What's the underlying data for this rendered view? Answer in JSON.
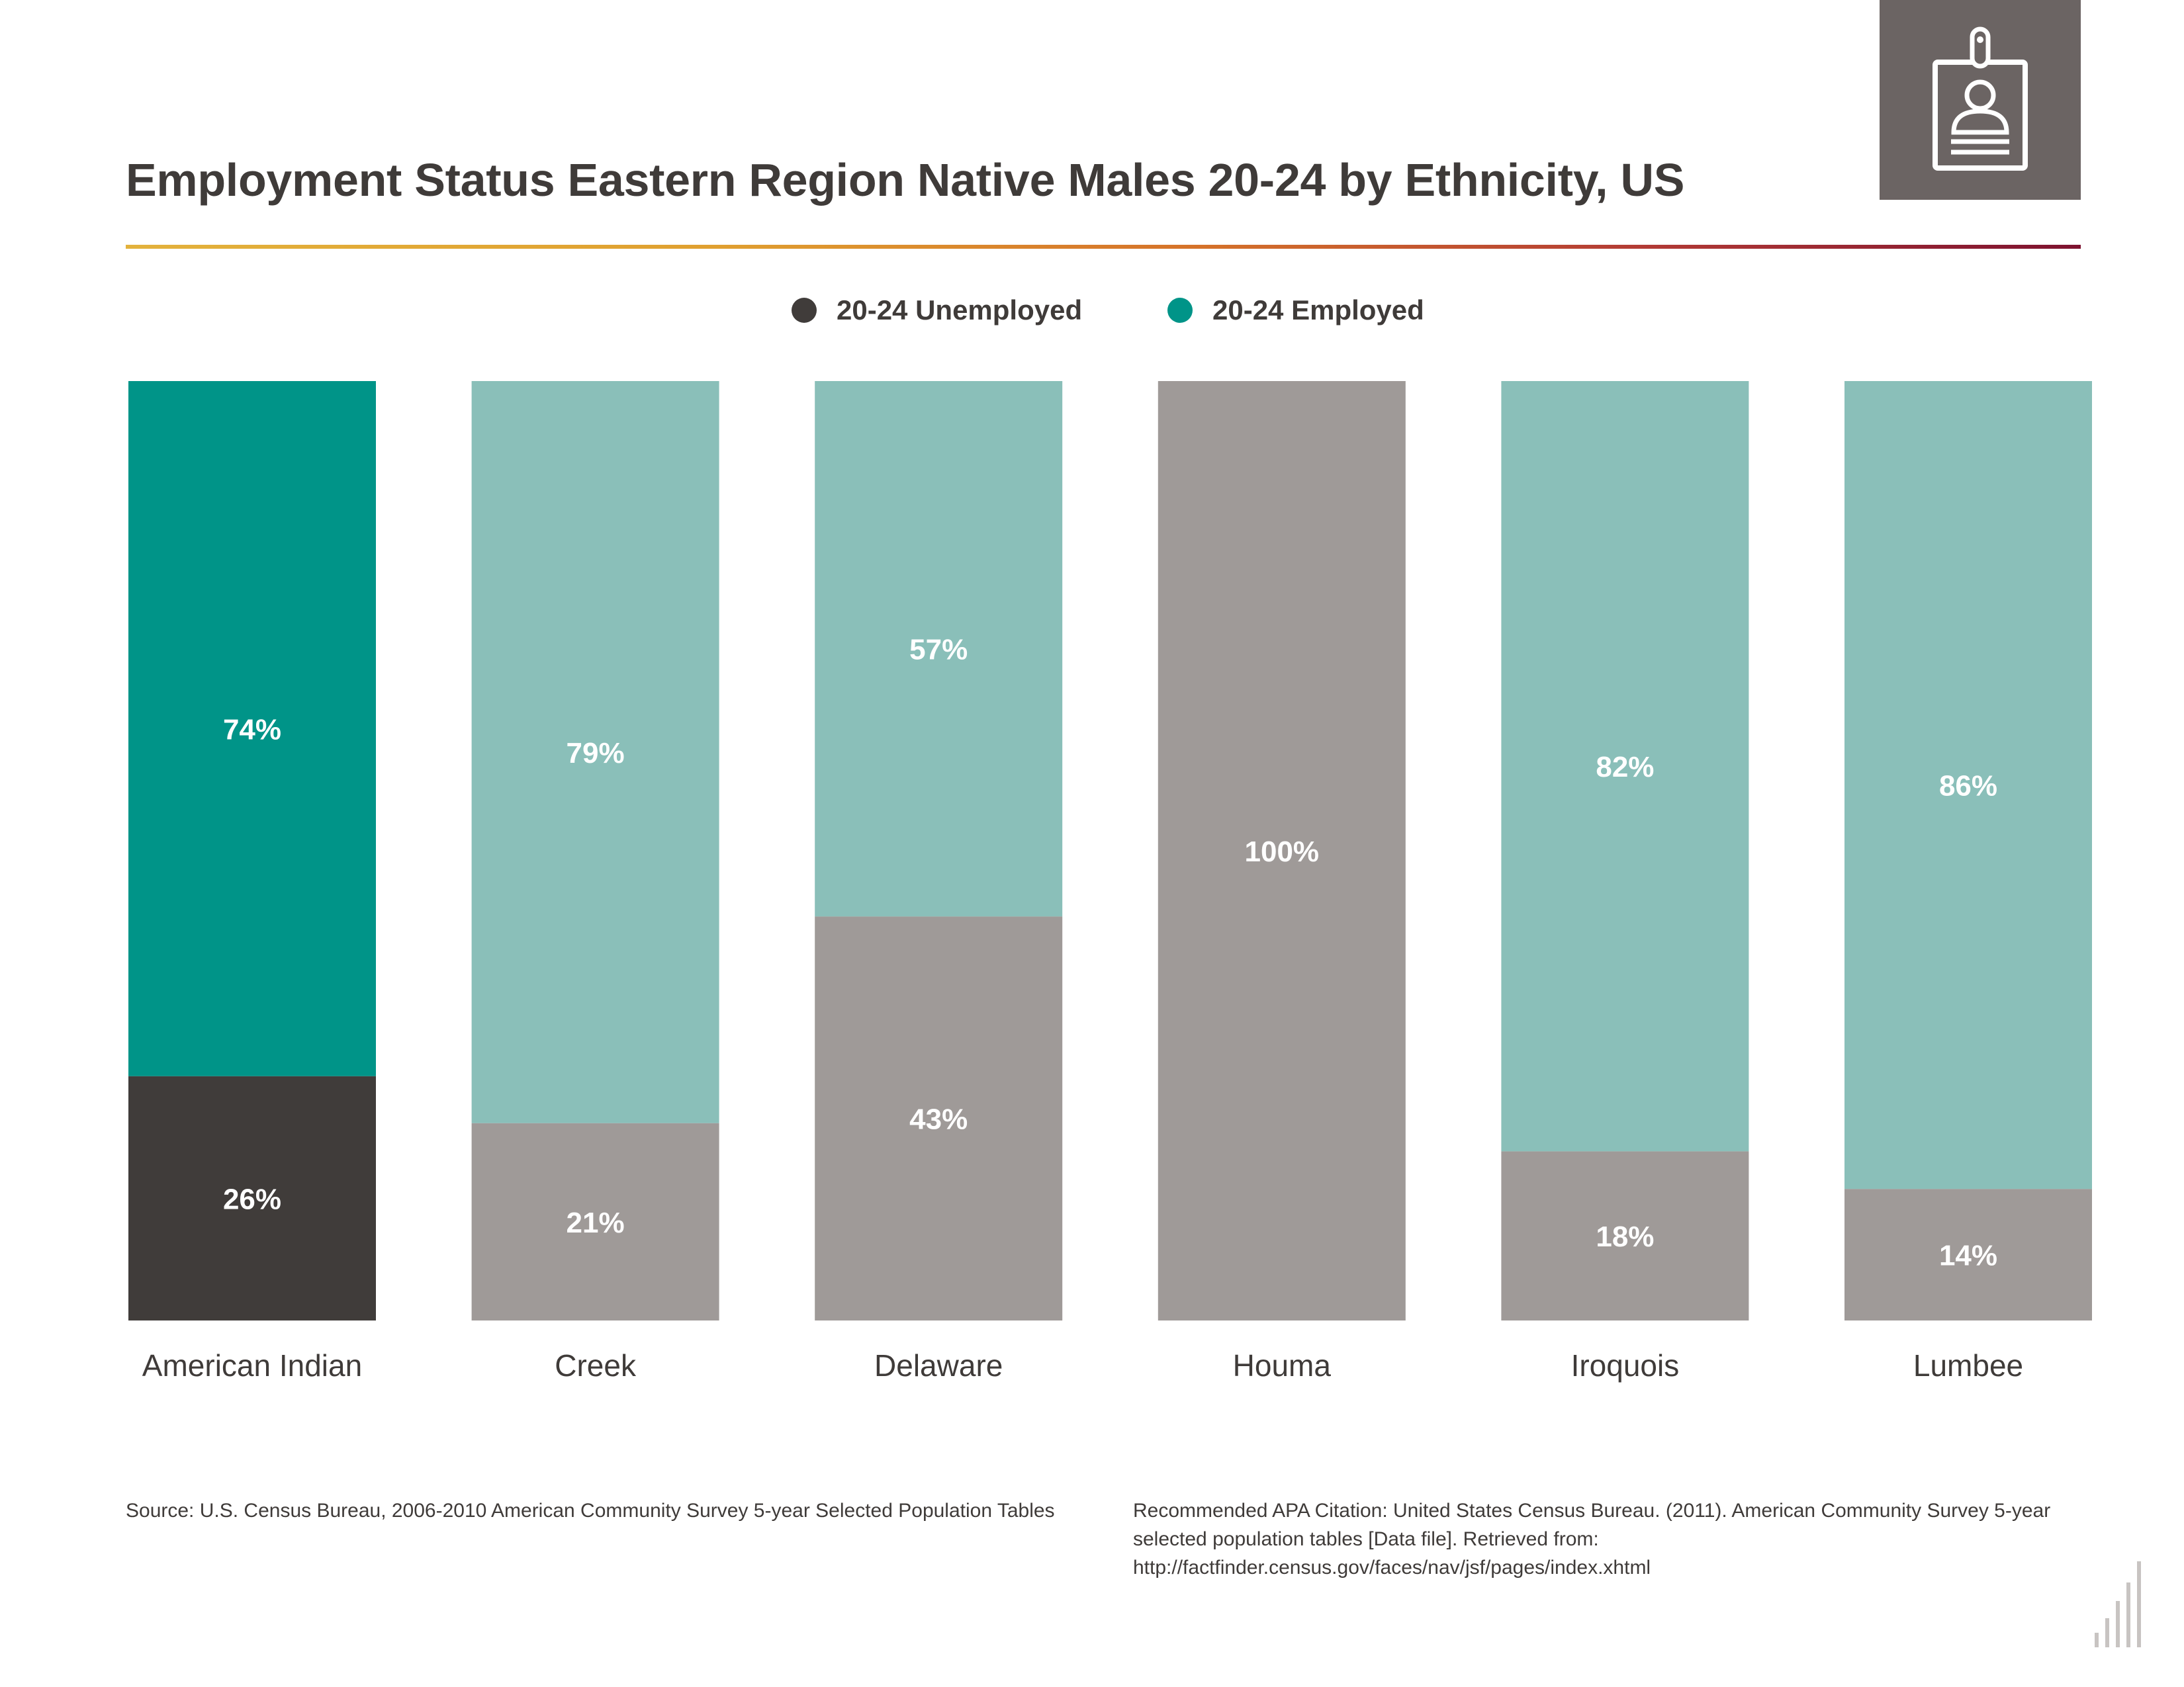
{
  "title": "Employment Status Eastern Region Native Males 20-24 by Ethnicity, US",
  "badge_icon": "id-badge-icon",
  "legend": [
    {
      "label": "20-24 Unemployed",
      "color": "#403c3a"
    },
    {
      "label": "20-24 Employed",
      "color": "#009488"
    }
  ],
  "colors": {
    "unemployed_primary": "#403c3a",
    "employed_primary": "#009488",
    "unemployed_other": "#9f9a98",
    "employed_other": "#8abfb9",
    "label_text": "#ffffff"
  },
  "chart_data": {
    "type": "bar",
    "stacked": true,
    "normalized": true,
    "title": "Employment Status Eastern Region Native Males 20-24 by Ethnicity, US",
    "categories": [
      "American Indian",
      "Creek",
      "Delaware",
      "Houma",
      "Iroquois",
      "Lumbee"
    ],
    "series": [
      {
        "name": "20-24 Unemployed",
        "values": [
          26,
          21,
          43,
          100,
          18,
          14
        ]
      },
      {
        "name": "20-24 Employed",
        "values": [
          74,
          79,
          57,
          0,
          82,
          86
        ]
      }
    ],
    "data_labels": {
      "unemployed": [
        "26%",
        "21%",
        "43%",
        "100%",
        "18%",
        "14%"
      ],
      "employed": [
        "74%",
        "79%",
        "57%",
        "",
        "82%",
        "86%"
      ]
    },
    "ylim": [
      0,
      100
    ],
    "xlabel": "",
    "ylabel": "",
    "legend_position": "top-center",
    "highlighted_category": "American Indian"
  },
  "footnotes": {
    "source": "Source:  U.S. Census Bureau, 2006-2010 American Community Survey 5-year Selected Population Tables",
    "citation": "Recommended APA Citation: United States Census Bureau. (2011). American Community Survey 5-year selected population tables [Data file]. Retrieved from: http://factfinder.census.gov/faces/nav/jsf/pages/index.xhtml"
  }
}
